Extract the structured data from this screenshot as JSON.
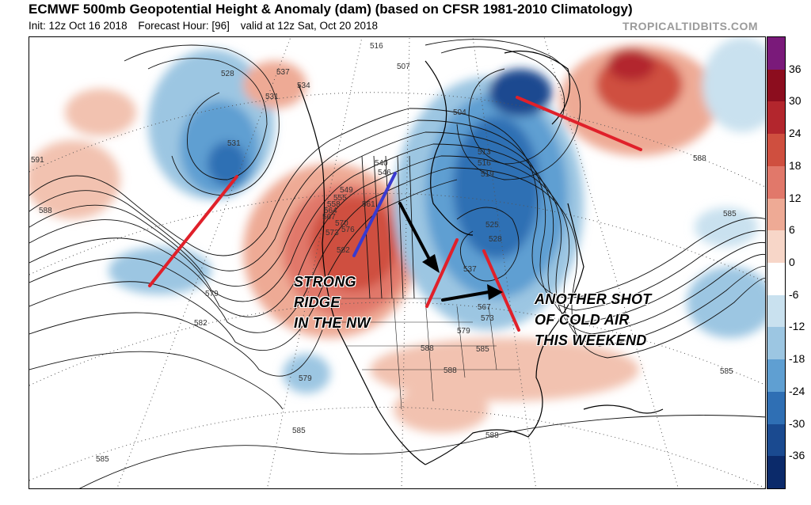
{
  "header": {
    "title": "ECMWF 500mb Geopotential Height & Anomaly (dam) (based on CFSR 1981-2010 Climatology)",
    "init": "Init: 12z Oct 16 2018",
    "forecast_hour": "Forecast Hour: [96]",
    "valid": "valid at 12z Sat, Oct 20 2018",
    "watermark": "TROPICALTIDBITS.COM"
  },
  "colorbar": {
    "labels": [
      "36",
      "30",
      "24",
      "18",
      "12",
      "6",
      "0",
      "-6",
      "-12",
      "-18",
      "-24",
      "-30",
      "-36"
    ],
    "colors": [
      "#7a1a7a",
      "#8c0d1e",
      "#b3262d",
      "#cf4f3f",
      "#e1786a",
      "#eeaa95",
      "#f7d6c8",
      "#ffffff",
      "#c9e1ef",
      "#9cc6e2",
      "#5f9fd2",
      "#2f6fb4",
      "#1a4a90",
      "#0b2a6a"
    ]
  },
  "annotations": {
    "ridge_lines": [
      "STRONG",
      "RIDGE",
      "IN THE NW"
    ],
    "cold_lines": [
      "ANOTHER SHOT",
      "OF COLD AIR",
      "THIS WEEKEND"
    ]
  },
  "contour_labels": [
    "528",
    "537",
    "534",
    "531",
    "516",
    "507",
    "504",
    "513",
    "516",
    "519",
    "531",
    "591",
    "588",
    "585",
    "588",
    "585",
    "579",
    "582",
    "579",
    "585",
    "585",
    "588",
    "588",
    "540",
    "546",
    "549",
    "555",
    "558",
    "561",
    "564",
    "567",
    "570",
    "573",
    "576",
    "582",
    "525",
    "528",
    "537",
    "567",
    "573",
    "579",
    "585",
    "588"
  ],
  "colors": {
    "positive_anomaly": "#eeaa95",
    "strong_positive": "#cf4f3f",
    "negative_anomaly": "#9cc6e2",
    "strong_negative": "#2f6fb4",
    "annotation_red": "#e0202a",
    "annotation_blue": "#3a3acf",
    "annotation_black": "#000000"
  }
}
